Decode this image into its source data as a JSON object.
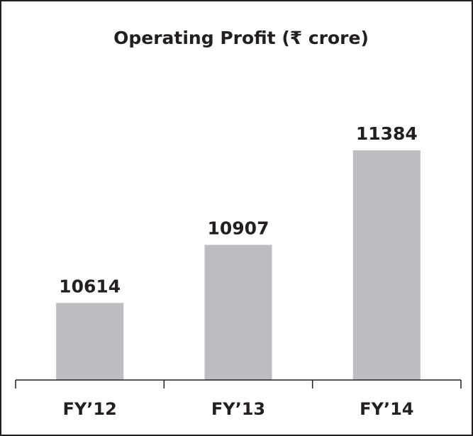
{
  "chart_data": {
    "type": "bar",
    "title": "Operating Profit (₹ crore)",
    "categories": [
      "FY’12",
      "FY’13",
      "FY’14"
    ],
    "values": [
      10614,
      10907,
      11384
    ],
    "color": "#bcbdc0",
    "ylim": [
      10225,
      11785
    ]
  }
}
